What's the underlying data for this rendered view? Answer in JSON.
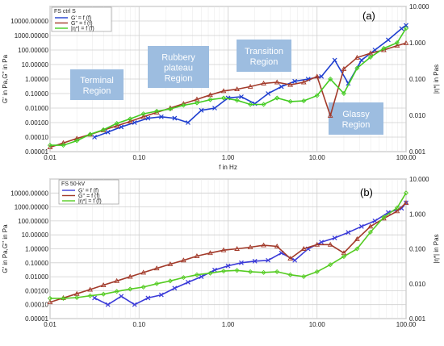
{
  "chart_data": [
    {
      "type": "line",
      "panel_label": "(a)",
      "legend_title": "FS ctrl S",
      "xlabel": "f in Hz",
      "ylabel": "G' in Pa,G'' in Pa",
      "y2label": "|η*| in Pas",
      "xscale": "log",
      "yscale": "log",
      "y2scale": "log",
      "xlim": [
        0.01,
        100
      ],
      "ylim": [
        1e-05,
        100000
      ],
      "y2lim": [
        0.001,
        10
      ],
      "x_tick_labels": [
        "0.01",
        "0.10",
        "1.00",
        "10.00",
        "100.00"
      ],
      "y_tick_labels": [
        "0.00001",
        "0.00010",
        "0.00100",
        "0.01000",
        "0.10000",
        "1.00000",
        "10.00000",
        "100.00000",
        "1000.00000",
        "10000.00000"
      ],
      "y2_tick_labels": [
        "0.001",
        "0.010",
        "0.100",
        "1.000",
        "10.000"
      ],
      "legend_position": "top-left",
      "regions": [
        "Terminal Region",
        "Rubbery plateau Region",
        "Transition Region",
        "Glassy Region"
      ],
      "grid": true,
      "colors": {
        "G_prime": "#1f3fd0",
        "G_double_prime": "#a23a2a",
        "eta": "#44cc22",
        "region_box": "#9dbde0"
      },
      "series": [
        {
          "name": "G' = f (f)",
          "axis": "left",
          "color": "#1f3fd0",
          "marker": "x",
          "x": [
            0.0316,
            0.0447,
            0.0631,
            0.0891,
            0.126,
            0.178,
            0.251,
            0.355,
            0.501,
            0.708,
            1.0,
            1.41,
            2.0,
            2.82,
            3.98,
            5.62,
            7.94,
            11.2,
            15.8,
            22.4,
            31.6,
            44.7,
            63.1,
            89.1,
            100
          ],
          "y": [
            0.0001,
            0.00022,
            0.0005,
            0.001,
            0.002,
            0.0025,
            0.002,
            0.001,
            0.007,
            0.01,
            0.05,
            0.06,
            0.02,
            0.1,
            0.3,
            0.7,
            1.0,
            1.5,
            20,
            0.5,
            20,
            100,
            500,
            3000,
            5000
          ]
        },
        {
          "name": "G'' = f (f)",
          "axis": "left",
          "color": "#a23a2a",
          "marker": "triangle",
          "x": [
            0.01,
            0.0141,
            0.02,
            0.0282,
            0.0398,
            0.0562,
            0.0794,
            0.112,
            0.158,
            0.224,
            0.316,
            0.447,
            0.631,
            0.891,
            1.26,
            1.78,
            2.51,
            3.55,
            5.01,
            7.08,
            10.0,
            14.1,
            20.0,
            28.2,
            39.8,
            56.2,
            79.4,
            100
          ],
          "y": [
            2e-05,
            4e-05,
            8e-05,
            0.00015,
            0.0003,
            0.0006,
            0.0012,
            0.0025,
            0.005,
            0.01,
            0.02,
            0.04,
            0.08,
            0.15,
            0.2,
            0.3,
            0.5,
            0.6,
            0.4,
            0.6,
            1.5,
            0.003,
            5,
            30,
            60,
            100,
            200,
            300
          ]
        },
        {
          "name": "|η*| = f (f)",
          "axis": "right",
          "color": "#44cc22",
          "marker": "diamond",
          "x": [
            0.01,
            0.0141,
            0.02,
            0.0282,
            0.0398,
            0.0562,
            0.0794,
            0.112,
            0.158,
            0.224,
            0.316,
            0.447,
            0.631,
            0.891,
            1.26,
            1.78,
            2.51,
            3.55,
            5.01,
            7.08,
            10.0,
            14.1,
            20.0,
            28.2,
            39.8,
            56.2,
            79.4,
            100
          ],
          "y": [
            0.0015,
            0.0015,
            0.002,
            0.003,
            0.004,
            0.006,
            0.008,
            0.011,
            0.013,
            0.015,
            0.019,
            0.022,
            0.027,
            0.03,
            0.026,
            0.02,
            0.02,
            0.03,
            0.024,
            0.025,
            0.035,
            0.1,
            0.04,
            0.2,
            0.4,
            0.7,
            1.0,
            2.5
          ]
        }
      ]
    },
    {
      "type": "line",
      "panel_label": "(b)",
      "legend_title": "FS 50-kV",
      "xlabel": "",
      "ylabel": "G' in Pa,G'' in Pa",
      "y2label": "|η*| in Pas",
      "xscale": "log",
      "yscale": "log",
      "y2scale": "log",
      "xlim": [
        0.01,
        100
      ],
      "ylim": [
        1e-05,
        100000
      ],
      "y2lim": [
        0.001,
        10
      ],
      "x_tick_labels": [
        "0.01",
        "0.10",
        "1.00",
        "10.00",
        "100.00"
      ],
      "y_tick_labels": [
        "0.00001",
        "0.00010",
        "0.00100",
        "0.01000",
        "0.10000",
        "1.00000",
        "10.00000",
        "100.00000",
        "1000.00000",
        "10000.00000"
      ],
      "y2_tick_labels": [
        "0.001",
        "0.010",
        "0.100",
        "1.000",
        "10.000"
      ],
      "legend_position": "top-left",
      "grid": true,
      "colors": {
        "G_prime": "#3a3ad8",
        "G_double_prime": "#a23a2a",
        "eta": "#55cc22"
      },
      "series": [
        {
          "name": "G' = f (f)",
          "axis": "left",
          "color": "#3a3ad8",
          "marker": "x",
          "x": [
            0.0316,
            0.0447,
            0.0631,
            0.0891,
            0.126,
            0.178,
            0.251,
            0.355,
            0.501,
            0.708,
            1.0,
            1.41,
            2.0,
            2.82,
            3.98,
            5.62,
            7.94,
            11.2,
            15.8,
            22.4,
            31.6,
            44.7,
            63.1,
            89.1,
            100
          ],
          "y": [
            0.0003,
            0.0001,
            0.0004,
            0.0001,
            0.0003,
            0.0005,
            0.0015,
            0.004,
            0.01,
            0.03,
            0.06,
            0.1,
            0.13,
            0.15,
            0.5,
            0.15,
            1,
            3,
            6,
            15,
            40,
            100,
            400,
            800,
            2000
          ]
        },
        {
          "name": "G'' = f (f)",
          "axis": "left",
          "color": "#a23a2a",
          "marker": "triangle",
          "x": [
            0.01,
            0.0141,
            0.02,
            0.0282,
            0.0398,
            0.0562,
            0.0794,
            0.112,
            0.158,
            0.224,
            0.316,
            0.447,
            0.631,
            0.891,
            1.26,
            1.78,
            2.51,
            3.55,
            5.01,
            7.08,
            10.0,
            14.1,
            20.0,
            28.2,
            39.8,
            56.2,
            79.4,
            100
          ],
          "y": [
            0.00015,
            0.0003,
            0.0006,
            0.0012,
            0.0025,
            0.005,
            0.01,
            0.02,
            0.04,
            0.08,
            0.15,
            0.3,
            0.5,
            0.8,
            1.0,
            1.3,
            1.8,
            1.5,
            0.2,
            1.0,
            2.0,
            2.0,
            0.5,
            5,
            40,
            150,
            500,
            2000
          ]
        },
        {
          "name": "|η*| = f (f)",
          "axis": "right",
          "color": "#55cc22",
          "marker": "diamond",
          "x": [
            0.01,
            0.0141,
            0.02,
            0.0282,
            0.0398,
            0.0562,
            0.0794,
            0.112,
            0.158,
            0.224,
            0.316,
            0.447,
            0.631,
            0.891,
            1.26,
            1.78,
            2.51,
            3.55,
            5.01,
            7.08,
            10.0,
            14.1,
            20.0,
            28.2,
            39.8,
            56.2,
            79.4,
            100
          ],
          "y": [
            0.0038,
            0.0038,
            0.004,
            0.0045,
            0.005,
            0.006,
            0.007,
            0.008,
            0.01,
            0.012,
            0.015,
            0.018,
            0.02,
            0.023,
            0.024,
            0.022,
            0.021,
            0.022,
            0.018,
            0.016,
            0.022,
            0.035,
            0.06,
            0.1,
            0.3,
            0.8,
            1.5,
            4
          ]
        }
      ]
    }
  ]
}
